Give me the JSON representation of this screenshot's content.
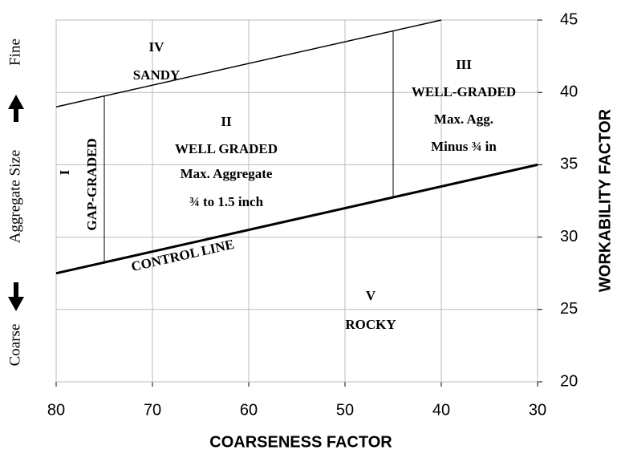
{
  "chart_data": {
    "type": "line",
    "xlabel": "COARSENESS FACTOR",
    "ylabel": "WORKABILITY FACTOR",
    "xlim": [
      80,
      30
    ],
    "xticks": [
      80,
      70,
      60,
      50,
      40,
      30
    ],
    "ylim": [
      20,
      45
    ],
    "yticks": [
      20,
      25,
      30,
      35,
      40,
      45
    ],
    "grid": true,
    "series": [
      {
        "x": [
          80,
          40
        ],
        "values": [
          39,
          45
        ],
        "color": "#000000",
        "width": 1.5
      },
      {
        "x": [
          80,
          30
        ],
        "values": [
          27.5,
          35
        ],
        "color": "#000000",
        "width": 3
      },
      {
        "x": [
          75,
          75
        ],
        "values": [
          28.25,
          39.75
        ],
        "color": "#000000",
        "width": 1
      },
      {
        "x": [
          45,
          45
        ],
        "values": [
          32.75,
          44.25
        ],
        "color": "#000000",
        "width": 1
      }
    ],
    "annotations": [
      "IV",
      "SANDY",
      "II",
      "WELL GRADED",
      "Max. Aggregate",
      "¾ to 1.5 inch",
      "III",
      "WELL-GRADED",
      "Max. Agg.",
      "Minus ¾ in",
      "I",
      "GAP-GRADED",
      "V",
      "ROCKY",
      "CONTROL LINE"
    ],
    "side_labels": [
      "Fine",
      "Aggregate Size",
      "Coarse"
    ]
  }
}
